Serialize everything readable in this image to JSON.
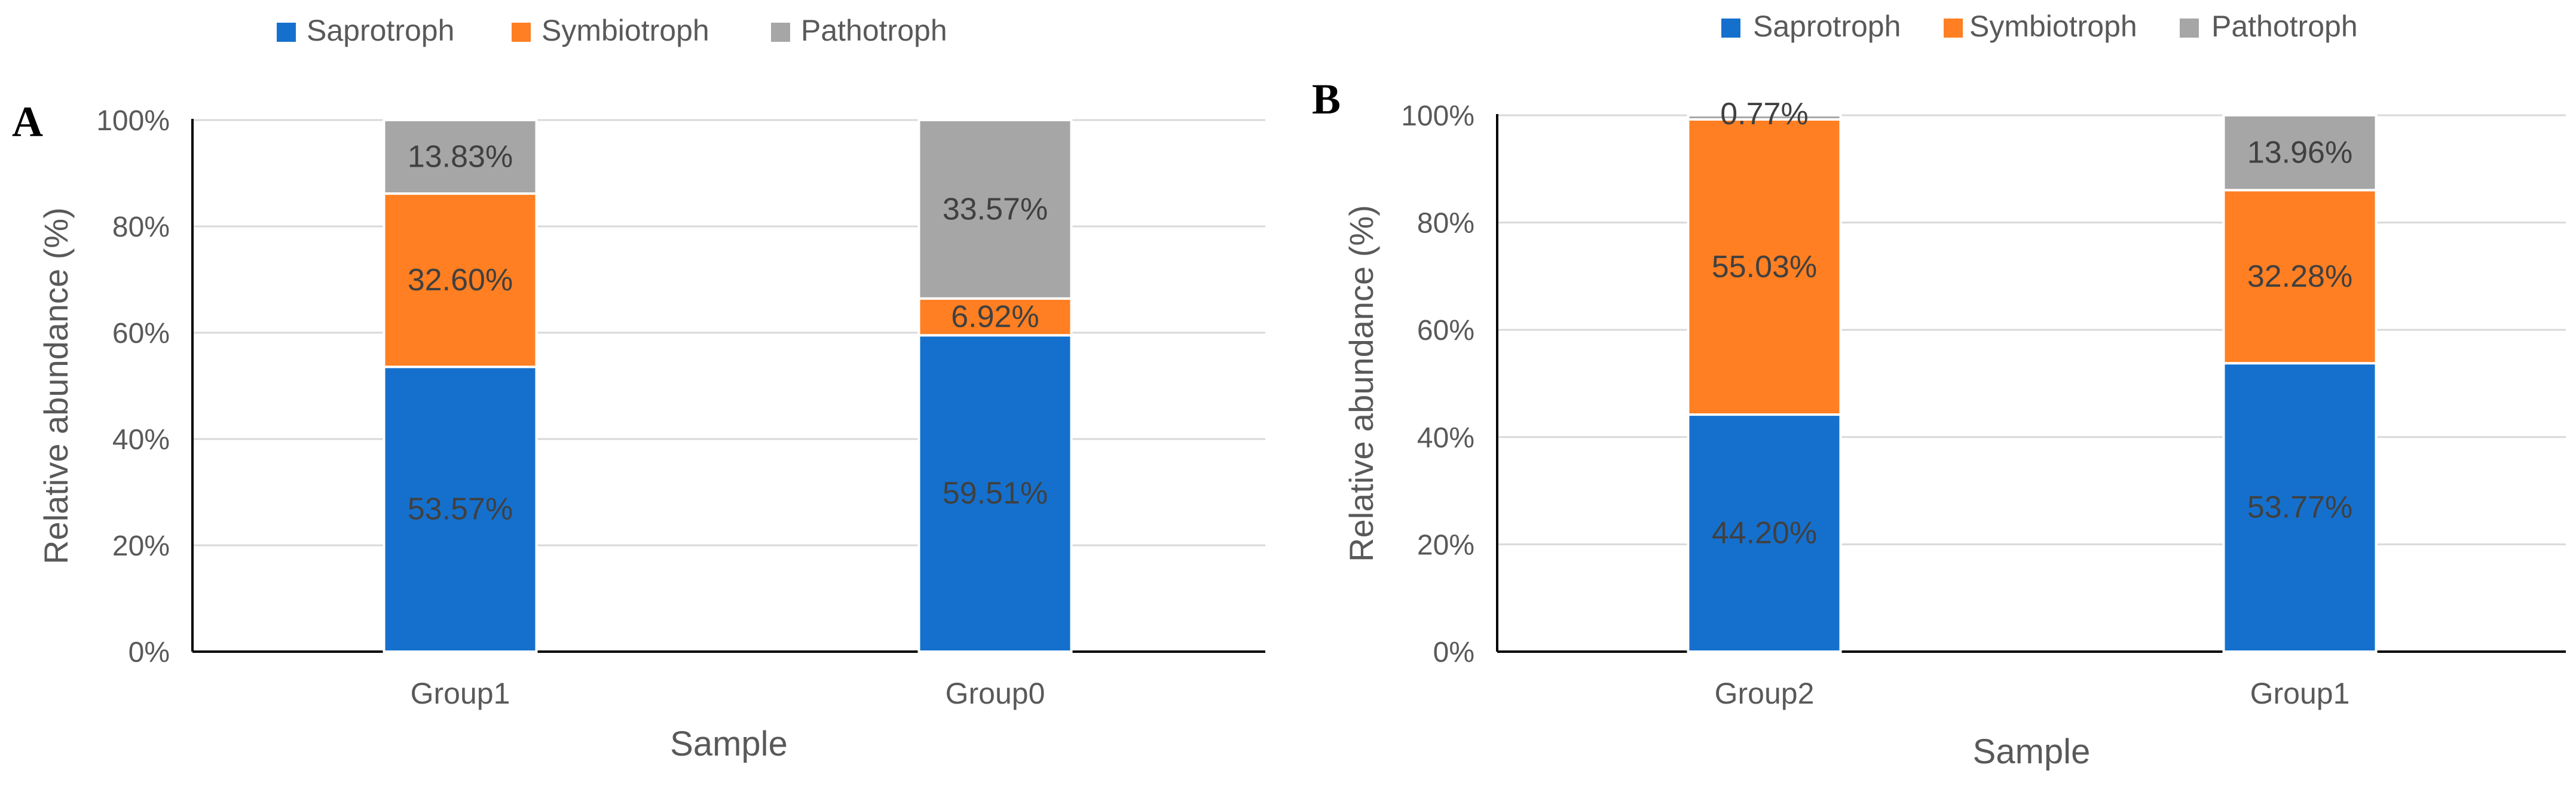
{
  "colors": {
    "Saprotroph": "#1570CD",
    "Symbiotroph": "#FF7F22",
    "Pathotroph": "#A6A6A6",
    "grid": "#D9D9D9",
    "axis": "#000000"
  },
  "chart_data": [
    {
      "type": "bar",
      "stacked": true,
      "panel_label": "A",
      "categories": [
        "Group1",
        "Group0"
      ],
      "series": [
        {
          "name": "Saprotroph",
          "values": [
            53.57,
            59.51
          ],
          "labels": [
            "53.57%",
            "59.51%"
          ]
        },
        {
          "name": "Symbiotroph",
          "values": [
            32.6,
            6.92
          ],
          "labels": [
            "32.60%",
            "6.92%"
          ]
        },
        {
          "name": "Pathotroph",
          "values": [
            13.83,
            33.57
          ],
          "labels": [
            "13.83%",
            "33.57%"
          ]
        }
      ],
      "xlabel": "Sample",
      "ylabel": "Relative abundance (%)",
      "ylim": [
        0,
        100
      ],
      "yticks": [
        "0%",
        "20%",
        "40%",
        "60%",
        "80%",
        "100%"
      ],
      "grid": true,
      "legend": "top"
    },
    {
      "type": "bar",
      "stacked": true,
      "panel_label": "B",
      "categories": [
        "Group2",
        "Group1"
      ],
      "series": [
        {
          "name": "Saprotroph",
          "values": [
            44.2,
            53.77
          ],
          "labels": [
            "44.20%",
            "53.77%"
          ]
        },
        {
          "name": "Symbiotroph",
          "values": [
            55.03,
            32.28
          ],
          "labels": [
            "55.03%",
            "32.28%"
          ]
        },
        {
          "name": "Pathotroph",
          "values": [
            0.77,
            13.96
          ],
          "labels": [
            "0.77%",
            "13.96%"
          ]
        }
      ],
      "xlabel": "Sample",
      "ylabel": "Relative abundance (%)",
      "ylim": [
        0,
        100
      ],
      "yticks": [
        "0%",
        "20%",
        "40%",
        "60%",
        "80%",
        "100%"
      ],
      "grid": true,
      "legend": "top"
    }
  ]
}
